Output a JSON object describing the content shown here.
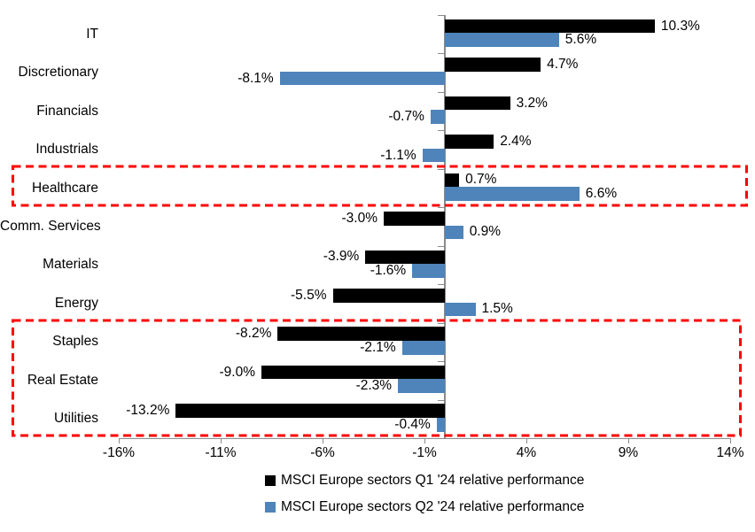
{
  "chart_data": {
    "type": "bar",
    "orientation": "horizontal",
    "title": "",
    "categories": [
      "IT",
      "Discretionary",
      "Financials",
      "Industrials",
      "Healthcare",
      "Comm. Services",
      "Materials",
      "Energy",
      "Staples",
      "Real Estate",
      "Utilities"
    ],
    "series": [
      {
        "name": "MSCI Europe sectors Q1 '24 relative performance",
        "color": "#000000",
        "values": [
          10.3,
          4.7,
          3.2,
          2.4,
          0.7,
          -3.0,
          -3.9,
          -5.5,
          -8.2,
          -9.0,
          -13.2
        ],
        "labels": [
          "10.3%",
          "4.7%",
          "3.2%",
          "2.4%",
          "0.7%",
          "-3.0%",
          "-3.9%",
          "-5.5%",
          "-8.2%",
          "-9.0%",
          "-13.2%"
        ]
      },
      {
        "name": "MSCI Europe sectors Q2 '24 relative performance",
        "color": "#4E84BA",
        "values": [
          5.6,
          -8.1,
          -0.7,
          -1.1,
          6.6,
          0.9,
          -1.6,
          1.5,
          -2.1,
          -2.3,
          -0.4
        ],
        "labels": [
          "5.6%",
          "-8.1%",
          "-0.7%",
          "-1.1%",
          "6.6%",
          "0.9%",
          "-1.6%",
          "1.5%",
          "-2.1%",
          "-2.3%",
          "-0.4%"
        ]
      }
    ],
    "x_axis": {
      "min": -16,
      "max": 14,
      "tick_labels": [
        "-16%",
        "-11%",
        "-6%",
        "-1%",
        "4%",
        "9%",
        "14%"
      ],
      "tick_values": [
        -16,
        -11,
        -6,
        -1,
        4,
        9,
        14
      ]
    },
    "grid": "off",
    "legend_position": "bottom",
    "annotations": [
      {
        "type": "dashed-box",
        "color": "#FE0000",
        "rows": [
          "Healthcare"
        ]
      },
      {
        "type": "dashed-box",
        "color": "#FE0000",
        "rows": [
          "Staples",
          "Real Estate",
          "Utilities"
        ]
      }
    ]
  }
}
